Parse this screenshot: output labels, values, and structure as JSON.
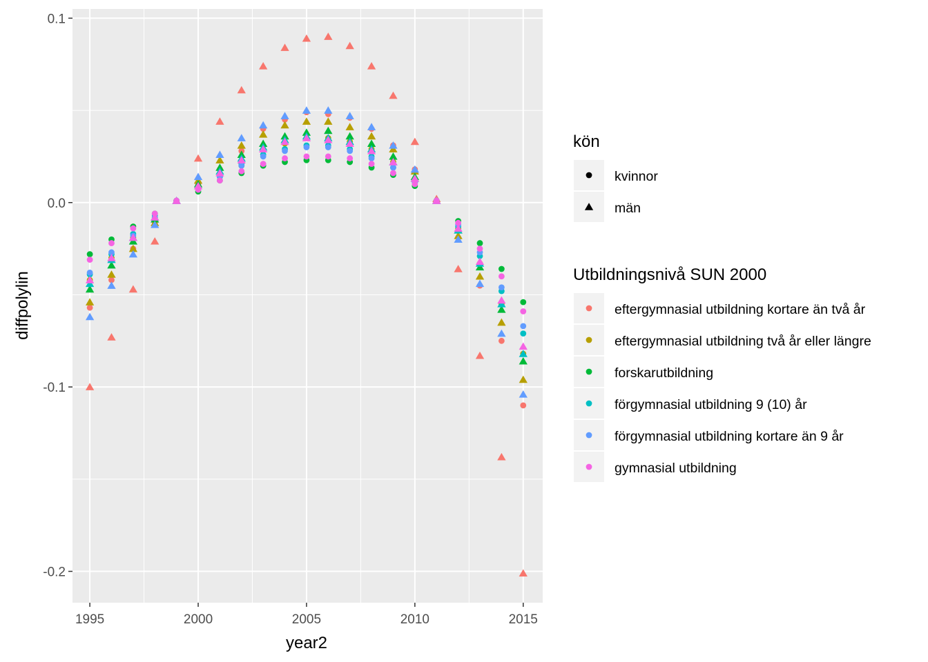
{
  "chart_data": {
    "type": "scatter",
    "title": "",
    "xlabel": "year2",
    "ylabel": "diffpolylin",
    "xlim": [
      1994.2,
      2015.9
    ],
    "ylim": [
      -0.217,
      0.105
    ],
    "xticks": [
      1995,
      2000,
      2005,
      2010,
      2015
    ],
    "yticks": [
      0.1,
      0.0,
      -0.1,
      -0.2
    ],
    "ytick_labels": [
      "0.1",
      "0.0",
      "-0.1",
      "-0.2"
    ],
    "xtick_labels": [
      "1995",
      "2000",
      "2005",
      "2010",
      "2015"
    ],
    "grid": true,
    "background": "#ebebeb",
    "legend": {
      "placement": "right",
      "shape_title": "kön",
      "shape_entries": [
        {
          "label": "kvinnor",
          "shape": "circle"
        },
        {
          "label": "män",
          "shape": "triangle"
        }
      ],
      "color_title": "Utbildningsnivå SUN 2000",
      "color_entries": [
        {
          "label": "eftergymnasial utbildning kortare än två år",
          "color": "#F8766D"
        },
        {
          "label": "eftergymnasial utbildning två år eller längre",
          "color": "#B79F00"
        },
        {
          "label": "forskarutbildning",
          "color": "#00BA38"
        },
        {
          "label": "förgymnasial utbildning 9 (10) år",
          "color": "#00BFC4"
        },
        {
          "label": "förgymnasial utbildning kortare än 9 år",
          "color": "#619CFF"
        },
        {
          "label": "gymnasial utbildning",
          "color": "#F564E3"
        }
      ]
    },
    "x": [
      1995,
      1996,
      1997,
      1998,
      1999,
      2000,
      2001,
      2002,
      2003,
      2004,
      2005,
      2006,
      2007,
      2008,
      2009,
      2010,
      2011,
      2012,
      2013,
      2014,
      2015
    ],
    "series": [
      {
        "name": "eftergymnasial utbildning kortare än två år",
        "shape": "circle",
        "color": "#F8766D",
        "values": [
          -0.057,
          -0.042,
          -0.025,
          -0.011,
          0.001,
          0.01,
          0.018,
          0.028,
          0.04,
          0.045,
          0.049,
          0.048,
          0.046,
          0.04,
          0.031,
          0.018,
          0.001,
          -0.019,
          -0.045,
          -0.075,
          -0.11
        ]
      },
      {
        "name": "eftergymnasial utbildning kortare än två år",
        "shape": "triangle",
        "color": "#F8766D",
        "values": [
          -0.1,
          -0.073,
          -0.047,
          -0.021,
          0.001,
          0.024,
          0.044,
          0.061,
          0.074,
          0.084,
          0.089,
          0.09,
          0.085,
          0.074,
          0.058,
          0.033,
          0.002,
          -0.036,
          -0.083,
          -0.138,
          -0.201
        ]
      },
      {
        "name": "eftergymnasial utbildning två år eller längre",
        "shape": "circle",
        "color": "#B79F00",
        "values": [
          -0.042,
          -0.03,
          -0.019,
          -0.008,
          0.001,
          0.008,
          0.014,
          0.02,
          0.029,
          0.032,
          0.035,
          0.035,
          0.033,
          0.029,
          0.022,
          0.012,
          0.001,
          -0.014,
          -0.033,
          -0.055,
          -0.082
        ]
      },
      {
        "name": "eftergymnasial utbildning två år eller längre",
        "shape": "triangle",
        "color": "#B79F00",
        "values": [
          -0.054,
          -0.039,
          -0.025,
          -0.011,
          0.001,
          0.012,
          0.023,
          0.031,
          0.037,
          0.042,
          0.044,
          0.044,
          0.041,
          0.036,
          0.029,
          0.017,
          0.001,
          -0.018,
          -0.04,
          -0.065,
          -0.096
        ]
      },
      {
        "name": "forskarutbildning",
        "shape": "circle",
        "color": "#00BA38",
        "values": [
          -0.028,
          -0.02,
          -0.013,
          -0.006,
          0.001,
          0.006,
          0.012,
          0.016,
          0.02,
          0.022,
          0.023,
          0.023,
          0.022,
          0.019,
          0.015,
          0.009,
          0.001,
          -0.01,
          -0.022,
          -0.036,
          -0.054
        ]
      },
      {
        "name": "forskarutbildning",
        "shape": "triangle",
        "color": "#00BA38",
        "values": [
          -0.047,
          -0.034,
          -0.021,
          -0.009,
          0.001,
          0.01,
          0.019,
          0.026,
          0.032,
          0.036,
          0.038,
          0.039,
          0.036,
          0.032,
          0.025,
          0.014,
          0.001,
          -0.015,
          -0.035,
          -0.058,
          -0.086
        ]
      },
      {
        "name": "förgymnasial utbildning 9 (10) år",
        "shape": "circle",
        "color": "#00BFC4",
        "values": [
          -0.039,
          -0.028,
          -0.017,
          -0.007,
          0.001,
          0.008,
          0.014,
          0.021,
          0.026,
          0.029,
          0.031,
          0.031,
          0.029,
          0.025,
          0.019,
          0.011,
          0.001,
          -0.013,
          -0.029,
          -0.048,
          -0.071
        ]
      },
      {
        "name": "förgymnasial utbildning 9 (10) år",
        "shape": "triangle",
        "color": "#00BFC4",
        "values": [
          -0.044,
          -0.031,
          -0.019,
          -0.008,
          0.001,
          0.009,
          0.017,
          0.024,
          0.03,
          0.034,
          0.036,
          0.035,
          0.033,
          0.029,
          0.022,
          0.013,
          0.001,
          -0.015,
          -0.033,
          -0.055,
          -0.082
        ]
      },
      {
        "name": "förgymnasial utbildning kortare än 9 år",
        "shape": "circle",
        "color": "#619CFF",
        "values": [
          -0.038,
          -0.027,
          -0.018,
          -0.008,
          0.001,
          0.008,
          0.014,
          0.02,
          0.025,
          0.028,
          0.03,
          0.03,
          0.028,
          0.024,
          0.019,
          0.011,
          0.001,
          -0.012,
          -0.027,
          -0.046,
          -0.067
        ]
      },
      {
        "name": "förgymnasial utbildning kortare än 9 år",
        "shape": "triangle",
        "color": "#619CFF",
        "values": [
          -0.062,
          -0.045,
          -0.028,
          -0.012,
          0.001,
          0.014,
          0.026,
          0.035,
          0.042,
          0.047,
          0.05,
          0.05,
          0.047,
          0.041,
          0.031,
          0.018,
          0.001,
          -0.02,
          -0.044,
          -0.071,
          -0.104
        ]
      },
      {
        "name": "gymnasial utbildning",
        "shape": "circle",
        "color": "#F564E3",
        "values": [
          -0.031,
          -0.022,
          -0.014,
          -0.006,
          0.001,
          0.007,
          0.012,
          0.017,
          0.021,
          0.024,
          0.025,
          0.025,
          0.024,
          0.021,
          0.016,
          0.01,
          0.001,
          -0.011,
          -0.025,
          -0.04,
          -0.059
        ]
      },
      {
        "name": "gymnasial utbildning",
        "shape": "triangle",
        "color": "#F564E3",
        "values": [
          -0.042,
          -0.03,
          -0.019,
          -0.008,
          0.001,
          0.009,
          0.016,
          0.023,
          0.029,
          0.033,
          0.035,
          0.034,
          0.032,
          0.028,
          0.022,
          0.013,
          0.001,
          -0.014,
          -0.032,
          -0.053,
          -0.078
        ]
      }
    ]
  }
}
